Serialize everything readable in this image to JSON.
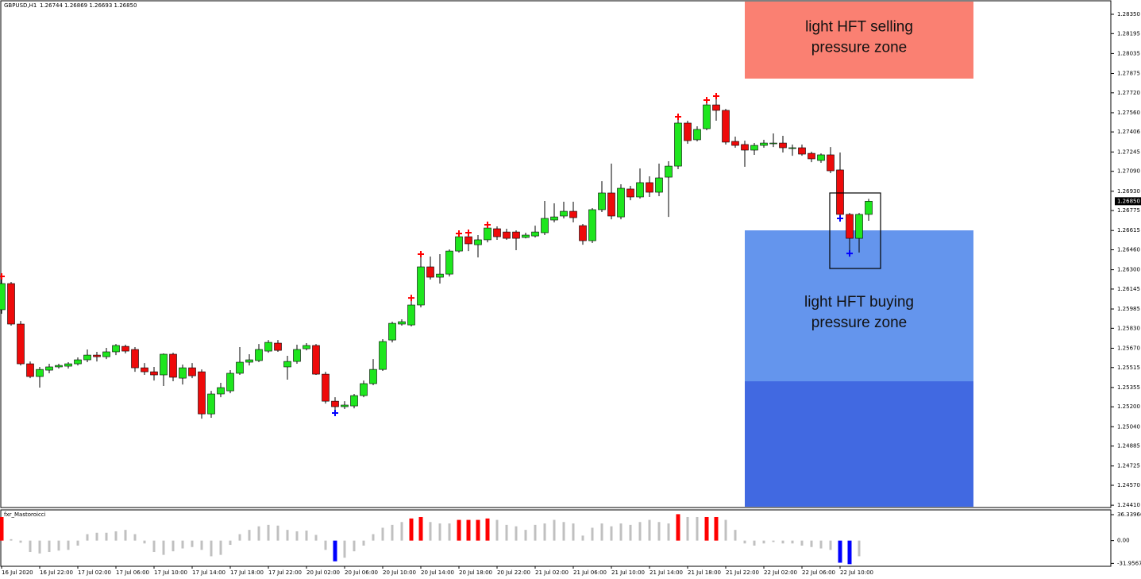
{
  "chart_data": {
    "type": "candlestick",
    "symbol": "GBPUSD,H1",
    "ohlc_label": "1.26744 1.26869 1.26693 1.26850",
    "up_color": "#1ee61e",
    "down_color": "#ee0a0a",
    "ylim": [
      1.24398,
      1.28452
    ],
    "yticks": [
      {
        "value": 1.2835,
        "label": "1.28350"
      },
      {
        "value": 1.28195,
        "label": "1.28195"
      },
      {
        "value": 1.28035,
        "label": "1.28035"
      },
      {
        "value": 1.27875,
        "label": "1.27875"
      },
      {
        "value": 1.2772,
        "label": "1.27720"
      },
      {
        "value": 1.2756,
        "label": "1.27560"
      },
      {
        "value": 1.27406,
        "label": "1.27406"
      },
      {
        "value": 1.27245,
        "label": "1.27245"
      },
      {
        "value": 1.2709,
        "label": "1.27090"
      },
      {
        "value": 1.2693,
        "label": "1.26930"
      },
      {
        "value": 1.26775,
        "label": "1.26775"
      },
      {
        "value": 1.26615,
        "label": "1.26615"
      },
      {
        "value": 1.2646,
        "label": "1.26460"
      },
      {
        "value": 1.263,
        "label": "1.26300"
      },
      {
        "value": 1.26145,
        "label": "1.26145"
      },
      {
        "value": 1.25985,
        "label": "1.25985"
      },
      {
        "value": 1.2583,
        "label": "1.25830"
      },
      {
        "value": 1.2567,
        "label": "1.25670"
      },
      {
        "value": 1.25515,
        "label": "1.25515"
      },
      {
        "value": 1.25355,
        "label": "1.25355"
      },
      {
        "value": 1.252,
        "label": "1.25200"
      },
      {
        "value": 1.2504,
        "label": "1.25040"
      },
      {
        "value": 1.24885,
        "label": "1.24885"
      },
      {
        "value": 1.24725,
        "label": "1.24725"
      },
      {
        "value": 1.2457,
        "label": "1.24570"
      },
      {
        "value": 1.2441,
        "label": "1.24410"
      }
    ],
    "last_price": {
      "value": 1.2685,
      "label": "1.26850"
    },
    "categories": [
      "16 Jul 2020",
      null,
      null,
      null,
      "16 Jul 22:00",
      null,
      null,
      null,
      "17 Jul 02:00",
      null,
      null,
      null,
      "17 Jul 06:00",
      null,
      null,
      null,
      "17 Jul 10:00",
      null,
      null,
      null,
      "17 Jul 14:00",
      null,
      null,
      null,
      "17 Jul 18:00",
      null,
      null,
      null,
      "17 Jul 22:00",
      null,
      null,
      null,
      "20 Jul 02:00",
      null,
      null,
      null,
      "20 Jul 06:00",
      null,
      null,
      null,
      "20 Jul 10:00",
      null,
      null,
      null,
      "20 Jul 14:00",
      null,
      null,
      null,
      "20 Jul 18:00",
      null,
      null,
      null,
      "20 Jul 22:00",
      null,
      null,
      null,
      "21 Jul 02:00",
      null,
      null,
      null,
      "21 Jul 06:00",
      null,
      null,
      null,
      "21 Jul 10:00",
      null,
      null,
      null,
      "21 Jul 14:00",
      null,
      null,
      null,
      "21 Jul 18:00",
      null,
      null,
      null,
      "21 Jul 22:00",
      null,
      null,
      null,
      "22 Jul 02:00",
      null,
      null,
      null,
      "22 Jul 06:00",
      null,
      null,
      null,
      "22 Jul 10:00",
      null,
      null,
      null
    ],
    "open": [
      1.25979,
      1.26189,
      1.25864,
      1.25545,
      1.25443,
      1.25494,
      1.2552,
      1.25526,
      1.25545,
      1.25577,
      1.25615,
      1.25602,
      1.25641,
      1.25685,
      1.2566,
      1.25513,
      1.25481,
      1.25456,
      1.25622,
      1.2543,
      1.25513,
      1.25481,
      1.25143,
      1.25303,
      1.25328,
      1.25469,
      1.25558,
      1.25571,
      1.25647,
      1.25711,
      1.2552,
      1.25564,
      1.25666,
      1.25692,
      1.25462,
      1.25245,
      1.25201,
      1.25207,
      1.2529,
      1.25386,
      1.255,
      1.25736,
      1.25864,
      1.25857,
      1.26017,
      1.26323,
      1.2624,
      1.26265,
      1.2645,
      1.26565,
      1.26501,
      1.2654,
      1.26629,
      1.26603,
      1.26603,
      1.26559,
      1.26571,
      1.26597,
      1.26699,
      1.26731,
      1.26769,
      1.26654,
      1.26533,
      1.26782,
      1.26916,
      1.26724,
      1.26948,
      1.26884,
      1.26999,
      1.26922,
      1.27043,
      1.27132,
      1.27477,
      1.27343,
      1.27432,
      1.27623,
      1.27579,
      1.2733,
      1.27305,
      1.2726,
      1.27298,
      1.27311,
      1.27317,
      1.27273,
      1.27279,
      1.27234,
      1.27177,
      1.27222,
      1.27101,
      1.26744,
      1.26552,
      1.26744
    ],
    "high": [
      1.26234,
      1.26202,
      1.25889,
      1.25564,
      1.2552,
      1.25545,
      1.25545,
      1.25558,
      1.25596,
      1.2566,
      1.25641,
      1.25673,
      1.25704,
      1.25698,
      1.25679,
      1.25551,
      1.2552,
      1.25628,
      1.25634,
      1.25539,
      1.25551,
      1.255,
      1.25328,
      1.25392,
      1.25494,
      1.25679,
      1.25622,
      1.25704,
      1.25736,
      1.25736,
      1.25609,
      1.25698,
      1.25711,
      1.25704,
      1.25481,
      1.25277,
      1.25245,
      1.25303,
      1.25411,
      1.25583,
      1.25743,
      1.25883,
      1.25902,
      1.26061,
      1.26412,
      1.26406,
      1.26425,
      1.26463,
      1.26578,
      1.26584,
      1.26578,
      1.26648,
      1.26648,
      1.26629,
      1.26616,
      1.26597,
      1.26654,
      1.26852,
      1.26833,
      1.26846,
      1.26846,
      1.26667,
      1.26795,
      1.27011,
      1.27152,
      1.26986,
      1.26973,
      1.27113,
      1.2705,
      1.27152,
      1.27171,
      1.27515,
      1.27496,
      1.27451,
      1.27649,
      1.27681,
      1.27591,
      1.27368,
      1.27336,
      1.27317,
      1.27343,
      1.27394,
      1.27375,
      1.27305,
      1.27305,
      1.27247,
      1.27234,
      1.27285,
      1.27241,
      1.26756,
      1.26756,
      1.26869
    ],
    "low": [
      1.25947,
      1.25851,
      1.25532,
      1.2543,
      1.25354,
      1.25469,
      1.25507,
      1.25507,
      1.25532,
      1.25558,
      1.25564,
      1.25583,
      1.25615,
      1.25628,
      1.25481,
      1.25456,
      1.25411,
      1.25367,
      1.25405,
      1.25379,
      1.2543,
      1.25105,
      1.25112,
      1.25277,
      1.25309,
      1.25456,
      1.25532,
      1.25558,
      1.25634,
      1.25641,
      1.25418,
      1.25545,
      1.25653,
      1.25456,
      1.25226,
      1.25169,
      1.25182,
      1.25188,
      1.25277,
      1.25373,
      1.25488,
      1.25717,
      1.25851,
      1.25845,
      1.25998,
      1.26221,
      1.26189,
      1.26246,
      1.26438,
      1.2645,
      1.26399,
      1.2652,
      1.2654,
      1.2654,
      1.26457,
      1.26552,
      1.26559,
      1.26578,
      1.2668,
      1.26712,
      1.2668,
      1.26501,
      1.26514,
      1.26763,
      1.26705,
      1.26705,
      1.26858,
      1.26871,
      1.26884,
      1.2689,
      1.26724,
      1.27107,
      1.27311,
      1.2733,
      1.27419,
      1.27496,
      1.27305,
      1.27279,
      1.27126,
      1.27222,
      1.27279,
      1.27285,
      1.27241,
      1.27215,
      1.27215,
      1.27164,
      1.27158,
      1.27075,
      1.26731,
      1.2645,
      1.26438,
      1.26693
    ],
    "close": [
      1.26189,
      1.25864,
      1.25545,
      1.25443,
      1.255,
      1.2552,
      1.25532,
      1.25545,
      1.25577,
      1.25615,
      1.25602,
      1.25641,
      1.25692,
      1.25647,
      1.25513,
      1.25481,
      1.25456,
      1.25622,
      1.25437,
      1.25513,
      1.25449,
      1.25143,
      1.25303,
      1.25354,
      1.25469,
      1.25558,
      1.25577,
      1.2566,
      1.25717,
      1.25653,
      1.25564,
      1.2566,
      1.25692,
      1.25462,
      1.25245,
      1.25201,
      1.25214,
      1.2529,
      1.25386,
      1.255,
      1.25724,
      1.2587,
      1.25883,
      1.26017,
      1.26323,
      1.2624,
      1.26265,
      1.2645,
      1.26565,
      1.26508,
      1.2654,
      1.26635,
      1.26565,
      1.26552,
      1.26552,
      1.26578,
      1.26603,
      1.26712,
      1.26724,
      1.26769,
      1.26718,
      1.26533,
      1.26782,
      1.26916,
      1.26731,
      1.26954,
      1.26884,
      1.26999,
      1.26922,
      1.27037,
      1.27132,
      1.27477,
      1.27336,
      1.27426,
      1.27623,
      1.27579,
      1.27324,
      1.27298,
      1.2726,
      1.27298,
      1.27317,
      1.27317,
      1.27279,
      1.27279,
      1.27228,
      1.2719,
      1.27222,
      1.27094,
      1.26744,
      1.26552,
      1.26744,
      1.2685
    ],
    "sell_marks": [
      0,
      43,
      44,
      48,
      49,
      51,
      71,
      74,
      75
    ],
    "sell_color": "#ff0000",
    "buy_marks": [
      35,
      88,
      89
    ],
    "buy_color": "#0000ff",
    "zones": [
      {
        "top": 1.28452,
        "bottom": 1.27834,
        "color": "#fa8072",
        "label": [
          "light HFT selling",
          "pressure zone"
        ]
      },
      {
        "top": 1.26616,
        "bottom": 1.25405,
        "color": "#6495ed",
        "label": [
          "light HFT buying",
          "pressure zone"
        ]
      },
      {
        "top": 1.25405,
        "bottom": 1.24398,
        "color": "#4169e1"
      }
    ],
    "highlight": {
      "top": 1.26916,
      "bottom": 1.2631
    },
    "indicator": {
      "type": "histogram",
      "name": "fxr_Mastoroicci",
      "ylim": [
        -36,
        43
      ],
      "yticks": [
        36.33966,
        {
          "value": 0,
          "label": "0.00"
        },
        -31.95672
      ],
      "values": [
        33,
        2,
        -3,
        -16,
        -18,
        -16,
        -14,
        -13,
        -7,
        9,
        11,
        11,
        13,
        15,
        9,
        -4,
        -16,
        -20,
        -15,
        -11,
        -9,
        -13,
        -22,
        -20,
        -6,
        9,
        15,
        20,
        22,
        21,
        15,
        13,
        14,
        8,
        -13,
        -29,
        -24,
        -15,
        -7,
        9,
        18,
        22,
        26,
        31,
        33,
        26,
        24,
        24,
        29,
        29,
        29,
        31,
        29,
        22,
        20,
        15,
        22,
        24,
        29,
        26,
        24,
        7,
        18,
        24,
        20,
        24,
        22,
        26,
        29,
        26,
        24,
        37,
        33,
        33,
        33,
        33,
        29,
        15,
        -4,
        -7,
        -4,
        -2,
        -4,
        -4,
        -7,
        -9,
        -11,
        -13,
        -31,
        -33,
        -22,
        0
      ],
      "colors": [
        "#ff0000",
        "#c0c0c0",
        "#c0c0c0",
        "#c0c0c0",
        "#c0c0c0",
        "#c0c0c0",
        "#c0c0c0",
        "#c0c0c0",
        "#c0c0c0",
        "#c0c0c0",
        "#c0c0c0",
        "#c0c0c0",
        "#c0c0c0",
        "#c0c0c0",
        "#c0c0c0",
        "#c0c0c0",
        "#c0c0c0",
        "#c0c0c0",
        "#c0c0c0",
        "#c0c0c0",
        "#c0c0c0",
        "#c0c0c0",
        "#c0c0c0",
        "#c0c0c0",
        "#c0c0c0",
        "#c0c0c0",
        "#c0c0c0",
        "#c0c0c0",
        "#c0c0c0",
        "#c0c0c0",
        "#c0c0c0",
        "#c0c0c0",
        "#c0c0c0",
        "#c0c0c0",
        "#c0c0c0",
        "#0000ff",
        "#c0c0c0",
        "#c0c0c0",
        "#c0c0c0",
        "#c0c0c0",
        "#c0c0c0",
        "#c0c0c0",
        "#c0c0c0",
        "#ff0000",
        "#ff0000",
        "#c0c0c0",
        "#c0c0c0",
        "#c0c0c0",
        "#ff0000",
        "#ff0000",
        "#ff0000",
        "#ff0000",
        "#c0c0c0",
        "#c0c0c0",
        "#c0c0c0",
        "#c0c0c0",
        "#c0c0c0",
        "#c0c0c0",
        "#c0c0c0",
        "#c0c0c0",
        "#c0c0c0",
        "#c0c0c0",
        "#c0c0c0",
        "#c0c0c0",
        "#c0c0c0",
        "#c0c0c0",
        "#c0c0c0",
        "#c0c0c0",
        "#c0c0c0",
        "#c0c0c0",
        "#c0c0c0",
        "#ff0000",
        "#c0c0c0",
        "#c0c0c0",
        "#ff0000",
        "#ff0000",
        "#c0c0c0",
        "#c0c0c0",
        "#c0c0c0",
        "#c0c0c0",
        "#c0c0c0",
        "#c0c0c0",
        "#c0c0c0",
        "#c0c0c0",
        "#c0c0c0",
        "#c0c0c0",
        "#c0c0c0",
        "#c0c0c0",
        "#0000ff",
        "#0000ff",
        "#c0c0c0",
        "#c0c0c0"
      ]
    }
  }
}
